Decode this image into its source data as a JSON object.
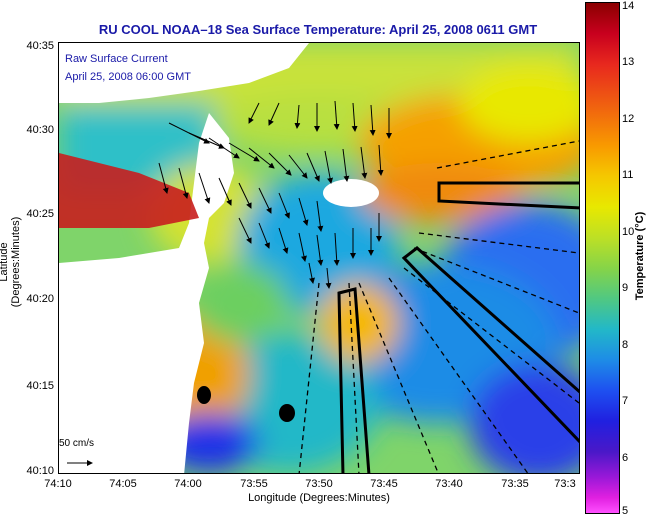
{
  "title": "RU COOL  NOAA–18  Sea Surface Temperature:  April 25, 2008 0611 GMT",
  "legend": {
    "line1": "Raw Surface Current",
    "line2": "April 25, 2008 06:00 GMT"
  },
  "scale_label": "50 cm/s",
  "y_axis": {
    "label": "Latitude (Degrees:Minutes)",
    "ticks": [
      "40:35",
      "40:30",
      "40:25",
      "40:20",
      "40:15",
      "40:10"
    ]
  },
  "x_axis": {
    "label": "Longitude (Degrees:Minutes)",
    "ticks": [
      "74:10",
      "74:05",
      "74:00",
      "73:55",
      "73:50",
      "73:45",
      "73:40",
      "73:35",
      "73:3"
    ]
  },
  "colorbar": {
    "label": "Temperature (°C)",
    "ticks": [
      "14",
      "13",
      "12",
      "11",
      "10",
      "9",
      "8",
      "7",
      "6",
      "5"
    ]
  },
  "colors": {
    "title": "#1a1aa8",
    "land": "#ffffff"
  }
}
